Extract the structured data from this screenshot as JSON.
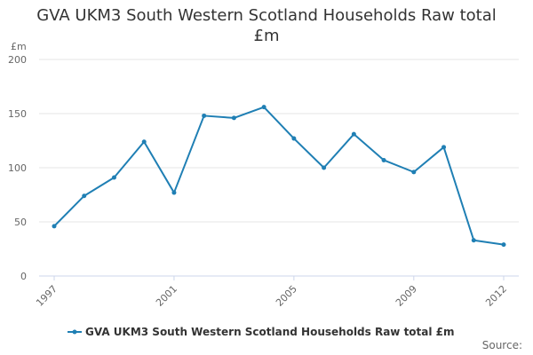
{
  "title_line1": "GVA UKM3 South Western Scotland Households Raw total",
  "title_line2": "£m",
  "unit_label": "£m",
  "source_label": "Source:",
  "colors": {
    "series": "#1f7fb4",
    "grid": "#e6e6e6",
    "axis": "#ccd6eb"
  },
  "chart_data": {
    "type": "line",
    "title": "GVA UKM3 South Western Scotland Households Raw total £m",
    "xlabel": "",
    "ylabel": "£m",
    "x": [
      1997,
      1998,
      1999,
      2000,
      2001,
      2002,
      2003,
      2004,
      2005,
      2006,
      2007,
      2008,
      2009,
      2010,
      2011,
      2012
    ],
    "x_tick_labels": [
      "1997",
      "2001",
      "2005",
      "2009",
      "2012"
    ],
    "y_ticks": [
      0,
      50,
      100,
      150,
      200
    ],
    "ylim": [
      0,
      200
    ],
    "grid": true,
    "legend_position": "bottom",
    "series": [
      {
        "name": "GVA UKM3 South Western Scotland Households Raw total £m",
        "values": [
          46,
          74,
          91,
          124,
          77,
          148,
          146,
          156,
          127,
          100,
          131,
          107,
          96,
          119,
          33,
          29
        ]
      }
    ]
  }
}
